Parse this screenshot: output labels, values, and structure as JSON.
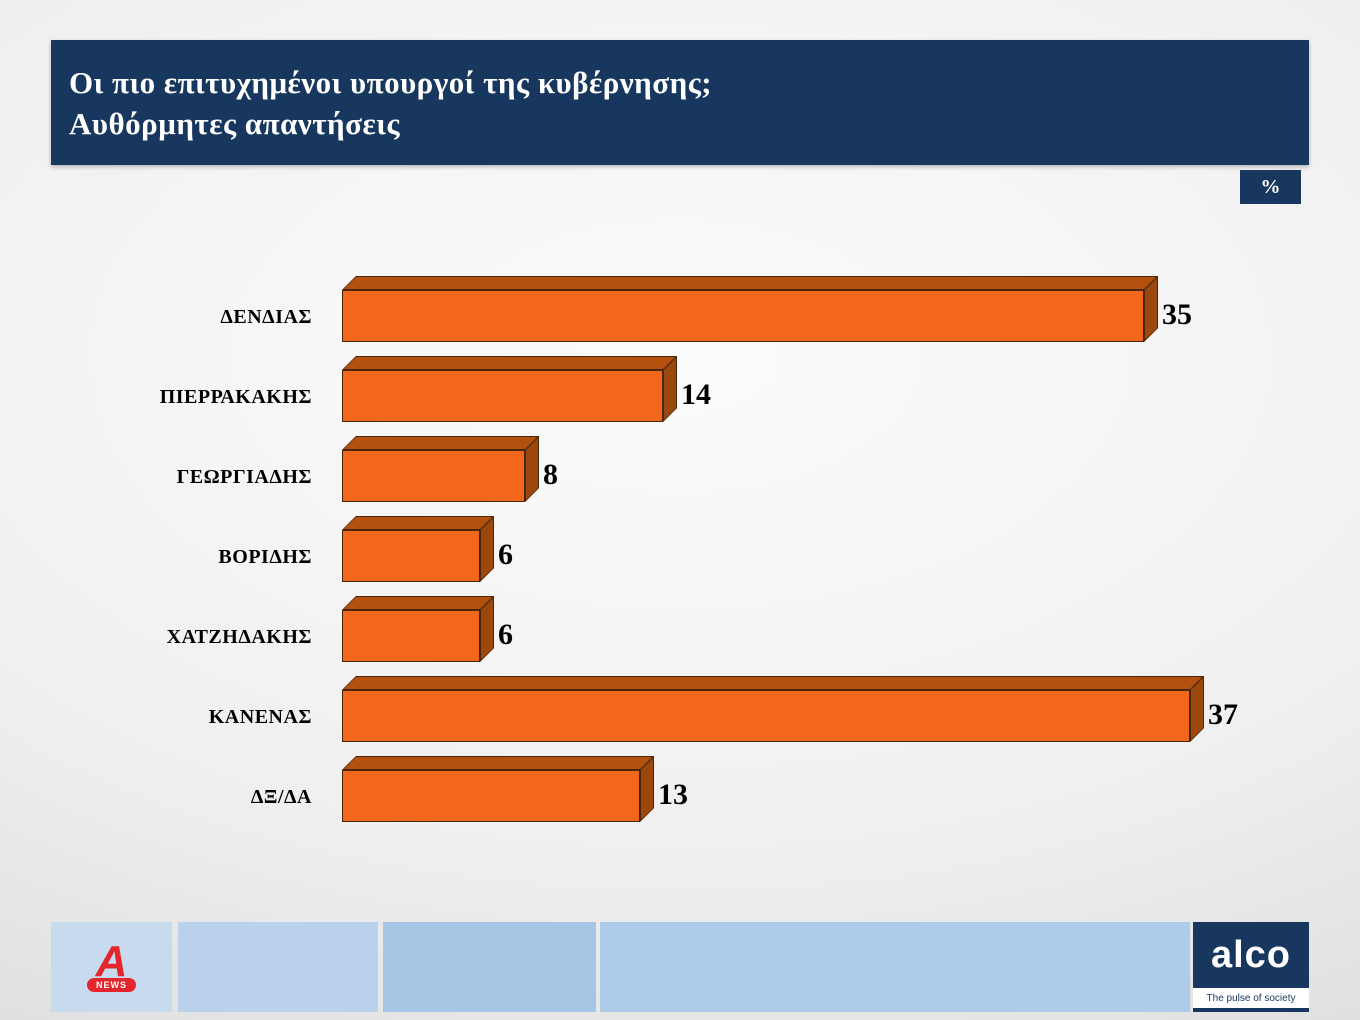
{
  "header": {
    "title_line1": "Οι πιο επιτυχημένοι υπουργοί της κυβέρνησης;",
    "title_line2": "Αυθόρμητες απαντήσεις"
  },
  "unit_badge": "%",
  "chart_data": {
    "type": "bar",
    "orientation": "horizontal",
    "title": "Οι πιο επιτυχημένοι υπουργοί της κυβέρνησης; Αυθόρμητες απαντήσεις",
    "unit": "%",
    "categories": [
      "ΔΕΝΔΙΑΣ",
      "ΠΙΕΡΡΑΚΑΚΗΣ",
      "ΓΕΩΡΓΙΑΔΗΣ",
      "ΒΟΡΙΔΗΣ",
      "ΧΑΤΖΗΔΑΚΗΣ",
      "ΚΑΝΕΝΑΣ",
      "ΔΞ/ΔΑ"
    ],
    "values": [
      35,
      14,
      8,
      6,
      6,
      37,
      13
    ],
    "xlim": [
      0,
      40
    ],
    "grid": false,
    "legend": "none",
    "bar_color": "#f2671c",
    "bar_3d_top_color": "#b5510f",
    "bar_3d_side_color": "#9c470c",
    "value_labels_shown": true
  },
  "footer": {
    "alpha_letter": "A",
    "alpha_news_label": "NEWS",
    "alco_label": "alco",
    "alco_tagline": "The pulse of society"
  },
  "colors": {
    "navy": "#17375e",
    "bar_front": "#f2671c",
    "bar_top": "#b5510f",
    "bar_side": "#9c470c",
    "footer_blue_1": "#c8dbee",
    "footer_blue_2": "#b9d1ea",
    "footer_blue_3": "#a6c6e5",
    "footer_blue_4": "#aecce9",
    "alpha_red": "#e3262c"
  }
}
